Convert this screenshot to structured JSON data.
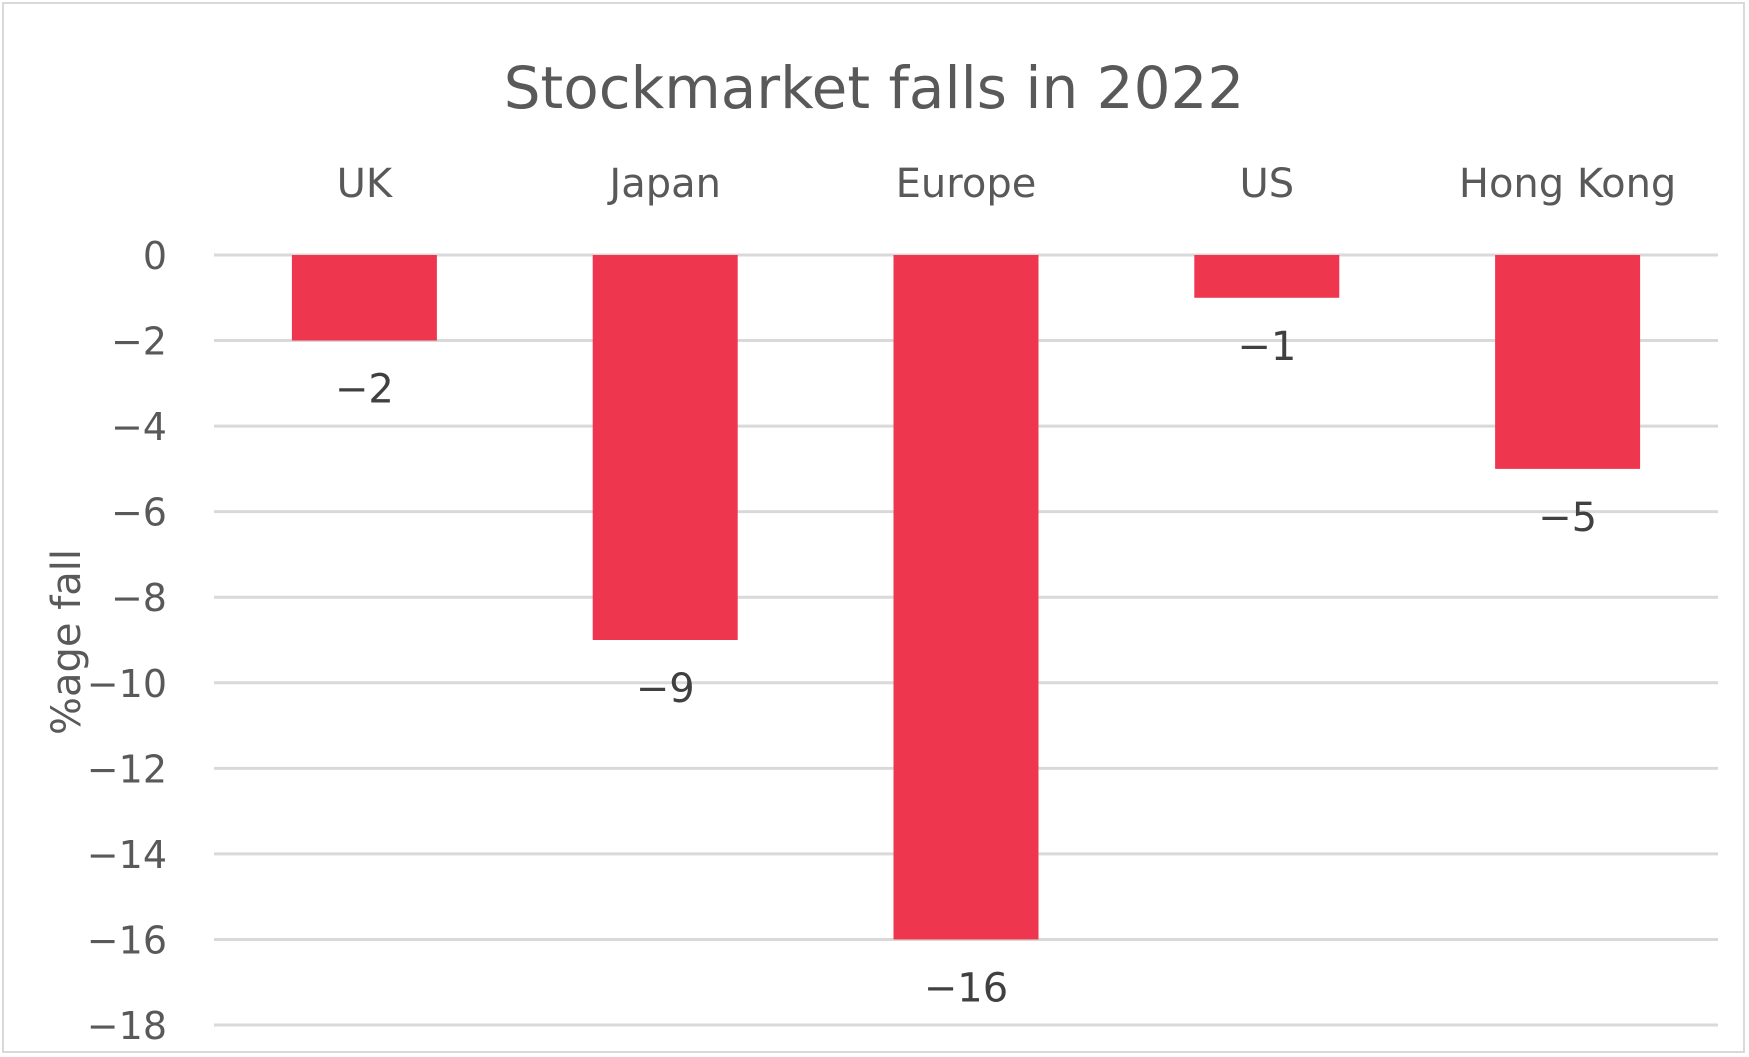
{
  "chart_data": {
    "type": "bar",
    "title": "Stockmarket falls in 2022",
    "xlabel": "",
    "ylabel": "%age fall",
    "categories": [
      "UK",
      "Japan",
      "Europe",
      "US",
      "Hong Kong"
    ],
    "values": [
      -2,
      -9,
      -16,
      -1,
      -5
    ],
    "data_labels": [
      "−2",
      "−9",
      "−16",
      "−1",
      "−5"
    ],
    "ylim": [
      -18,
      0
    ],
    "y_ticks": [
      0,
      -2,
      -4,
      -6,
      -8,
      -10,
      -12,
      -14,
      -16,
      -18
    ],
    "y_tick_labels": [
      "0",
      "−2",
      "−4",
      "−6",
      "−8",
      "−10",
      "−12",
      "−14",
      "−16",
      "−18"
    ],
    "x_axis_position": "top",
    "grid": true,
    "legend": "none",
    "colors": {
      "bar": "#ee374e",
      "grid": "#d9d9d9",
      "text": "#595959",
      "label": "#404040"
    }
  }
}
